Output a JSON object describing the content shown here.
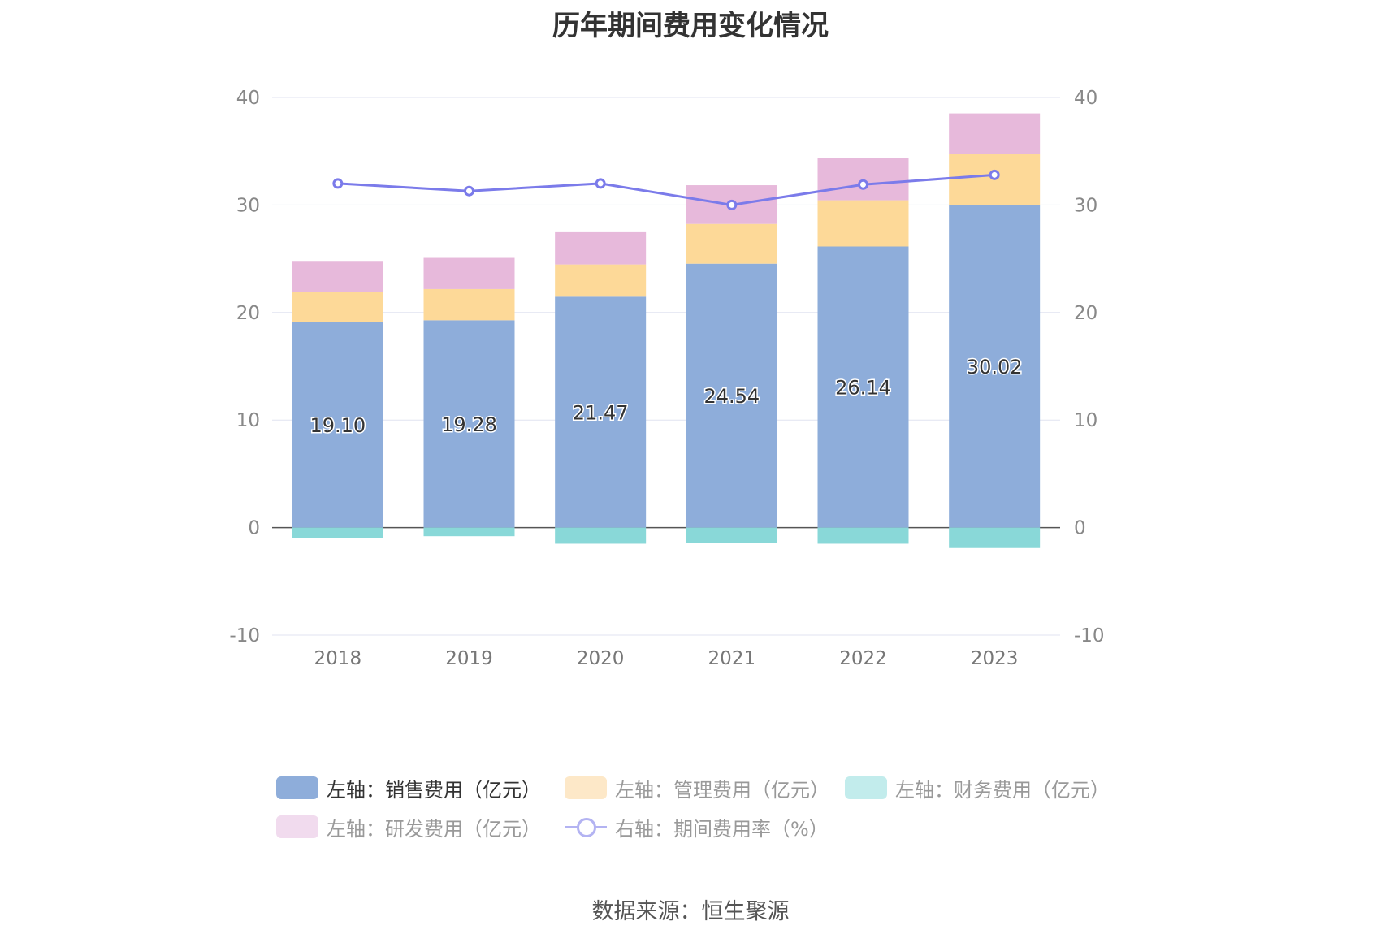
{
  "chart_data": {
    "type": "bar",
    "title": "历年期间费用变化情况",
    "categories": [
      "2018",
      "2019",
      "2020",
      "2021",
      "2022",
      "2023"
    ],
    "series": [
      {
        "name": "左轴：销售费用（亿元）",
        "axis": "left",
        "color": "#8eadda",
        "values": [
          19.1,
          19.28,
          21.47,
          24.54,
          26.14,
          30.02
        ],
        "show_labels": true
      },
      {
        "name": "左轴：管理费用（亿元）",
        "axis": "left",
        "color": "#fdd998",
        "values": [
          2.8,
          2.9,
          3.0,
          3.7,
          4.3,
          4.7
        ]
      },
      {
        "name": "左轴：财务费用（亿元）",
        "axis": "left",
        "color": "#89d8d8",
        "values": [
          -1.0,
          -0.8,
          -1.5,
          -1.4,
          -1.5,
          -1.9
        ]
      },
      {
        "name": "左轴：研发费用（亿元）",
        "axis": "left",
        "color": "#e7b9db",
        "values": [
          2.9,
          2.9,
          3.0,
          3.6,
          3.9,
          3.8
        ]
      },
      {
        "name": "右轴：期间费用率（%）",
        "axis": "right",
        "type": "line",
        "color": "#7b7bea",
        "values": [
          32.0,
          31.3,
          32.0,
          30.0,
          31.9,
          32.8
        ]
      }
    ],
    "ylim_left": [
      -10,
      40
    ],
    "ylim_right": [
      -10,
      40
    ],
    "yticks": [
      -10,
      0,
      10,
      20,
      30,
      40
    ],
    "legend_position": "bottom",
    "grid": true
  },
  "legend": {
    "sales": "左轴：销售费用（亿元）",
    "admin": "左轴：管理费用（亿元）",
    "finance": "左轴：财务费用（亿元）",
    "rnd": "左轴：研发费用（亿元）",
    "rate": "右轴：期间费用率（%）"
  },
  "colors": {
    "sales": "#8eadda",
    "admin": "#fdd998",
    "finance": "#89d8d8",
    "rnd": "#e7b9db",
    "line": "#7b7bea",
    "admin_legend": "#fde8c8",
    "finance_legend": "#c2ecec",
    "rnd_legend": "#f1dbee",
    "grid": "#e0e3f0"
  },
  "source": "数据来源：恒生聚源"
}
